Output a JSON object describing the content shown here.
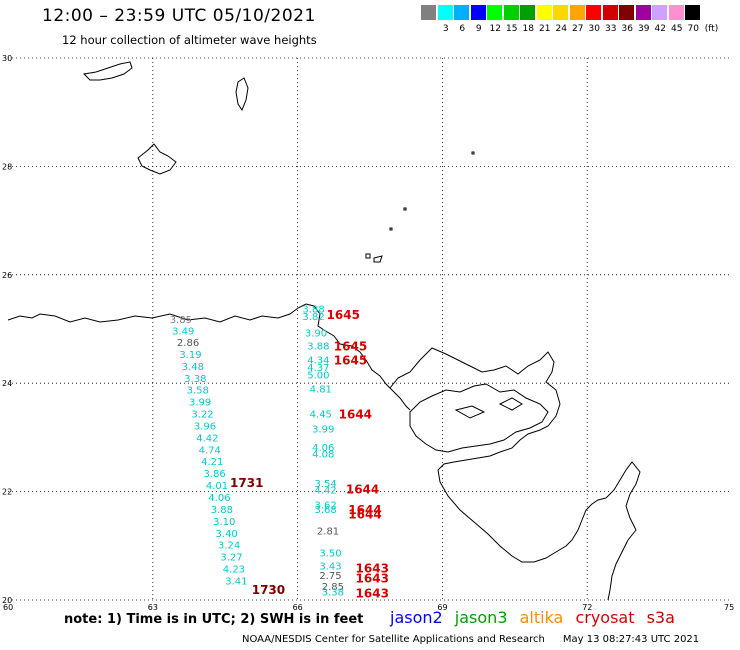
{
  "header": {
    "title": "12:00 – 23:59 UTC 05/10/2021",
    "subtitle": "12 hour collection of altimeter wave heights"
  },
  "scale": {
    "unit": "(ft)",
    "swatches": [
      {
        "color": "#808080",
        "label": ""
      },
      {
        "color": "#00ffff",
        "label": "3"
      },
      {
        "color": "#00b0ff",
        "label": "6"
      },
      {
        "color": "#0000ff",
        "label": "9"
      },
      {
        "color": "#00ff00",
        "label": "12"
      },
      {
        "color": "#00d000",
        "label": "15"
      },
      {
        "color": "#00a000",
        "label": "18"
      },
      {
        "color": "#ffff00",
        "label": "21"
      },
      {
        "color": "#ffd700",
        "label": "24"
      },
      {
        "color": "#ffa500",
        "label": "27"
      },
      {
        "color": "#ff0000",
        "label": "30"
      },
      {
        "color": "#d00000",
        "label": "33"
      },
      {
        "color": "#800000",
        "label": "36"
      },
      {
        "color": "#a000a0",
        "label": "39"
      },
      {
        "color": "#d0a0ff",
        "label": "42"
      },
      {
        "color": "#ff90d0",
        "label": "45"
      },
      {
        "color": "#000000",
        "label": "70"
      }
    ]
  },
  "map": {
    "lon_labels": [
      "60",
      "63",
      "66",
      "69",
      "72",
      "75"
    ],
    "lat_labels": [
      "30",
      "28",
      "26",
      "24",
      "22",
      "20"
    ],
    "track_west": [
      {
        "lon": 63.35,
        "lat": 25.18,
        "v": "3.85",
        "color": "#808080"
      },
      {
        "lon": 63.4,
        "lat": 24.97,
        "v": "3.49",
        "color": "#00cccc"
      },
      {
        "lon": 63.5,
        "lat": 24.76,
        "v": "2.86",
        "color": "#555555"
      },
      {
        "lon": 63.55,
        "lat": 24.54,
        "v": "3.19",
        "color": "#00cccc"
      },
      {
        "lon": 63.6,
        "lat": 24.32,
        "v": "3.48",
        "color": "#00cccc"
      },
      {
        "lon": 63.65,
        "lat": 24.1,
        "v": "3.38",
        "color": "#00cccc"
      },
      {
        "lon": 63.7,
        "lat": 23.88,
        "v": "3.58",
        "color": "#00cccc"
      },
      {
        "lon": 63.75,
        "lat": 23.66,
        "v": "3.99",
        "color": "#00cccc"
      },
      {
        "lon": 63.8,
        "lat": 23.44,
        "v": "3.22",
        "color": "#00cccc"
      },
      {
        "lon": 63.85,
        "lat": 23.22,
        "v": "3.96",
        "color": "#00cccc"
      },
      {
        "lon": 63.9,
        "lat": 23.0,
        "v": "4.42",
        "color": "#00cccc"
      },
      {
        "lon": 63.95,
        "lat": 22.78,
        "v": "4.74",
        "color": "#00cccc"
      },
      {
        "lon": 64.0,
        "lat": 22.56,
        "v": "4.21",
        "color": "#00cccc"
      },
      {
        "lon": 64.05,
        "lat": 22.34,
        "v": "3.86",
        "color": "#00cccc"
      },
      {
        "lon": 64.1,
        "lat": 22.12,
        "v": "4.01",
        "color": "#00cccc"
      },
      {
        "lon": 64.15,
        "lat": 21.9,
        "v": "4.06",
        "color": "#00cccc"
      },
      {
        "lon": 64.2,
        "lat": 21.68,
        "v": "3.88",
        "color": "#00cccc"
      },
      {
        "lon": 64.25,
        "lat": 21.46,
        "v": "3.10",
        "color": "#00cccc"
      },
      {
        "lon": 64.3,
        "lat": 21.24,
        "v": "3.40",
        "color": "#00cccc"
      },
      {
        "lon": 64.35,
        "lat": 21.02,
        "v": "3.24",
        "color": "#00cccc"
      },
      {
        "lon": 64.4,
        "lat": 20.8,
        "v": "3.27",
        "color": "#00cccc"
      },
      {
        "lon": 64.45,
        "lat": 20.58,
        "v": "4.23",
        "color": "#00cccc"
      },
      {
        "lon": 64.5,
        "lat": 20.36,
        "v": "3.41",
        "color": "#00cccc"
      }
    ],
    "track_east": [
      {
        "lon": 66.1,
        "lat": 25.38,
        "v": "3.88",
        "color": "#00cccc"
      },
      {
        "lon": 66.1,
        "lat": 25.24,
        "v": "3.82",
        "color": "#00cccc"
      },
      {
        "lon": 66.15,
        "lat": 24.94,
        "v": "3.90",
        "color": "#00cccc"
      },
      {
        "lon": 66.2,
        "lat": 24.7,
        "v": "3.88",
        "color": "#00cccc"
      },
      {
        "lon": 66.2,
        "lat": 24.44,
        "v": "4.34",
        "color": "#00cccc"
      },
      {
        "lon": 66.2,
        "lat": 24.3,
        "v": "4.37",
        "color": "#00cccc"
      },
      {
        "lon": 66.2,
        "lat": 24.16,
        "v": "5.00",
        "color": "#00cccc"
      },
      {
        "lon": 66.25,
        "lat": 23.9,
        "v": "4.81",
        "color": "#00cccc"
      },
      {
        "lon": 66.25,
        "lat": 23.44,
        "v": "4.45",
        "color": "#00cccc"
      },
      {
        "lon": 66.3,
        "lat": 23.16,
        "v": "3.99",
        "color": "#00cccc"
      },
      {
        "lon": 66.3,
        "lat": 22.82,
        "v": "4.06",
        "color": "#00cccc"
      },
      {
        "lon": 66.3,
        "lat": 22.7,
        "v": "4.08",
        "color": "#00cccc"
      },
      {
        "lon": 66.35,
        "lat": 22.16,
        "v": "3.54",
        "color": "#00cccc"
      },
      {
        "lon": 66.35,
        "lat": 22.04,
        "v": "4.42",
        "color": "#00cccc"
      },
      {
        "lon": 66.35,
        "lat": 21.76,
        "v": "3.62",
        "color": "#00cccc"
      },
      {
        "lon": 66.35,
        "lat": 21.68,
        "v": "3.68",
        "color": "#00cccc"
      },
      {
        "lon": 66.4,
        "lat": 21.28,
        "v": "2.81",
        "color": "#555555"
      },
      {
        "lon": 66.45,
        "lat": 20.88,
        "v": "3.50",
        "color": "#00cccc"
      },
      {
        "lon": 66.45,
        "lat": 20.64,
        "v": "3.43",
        "color": "#00cccc"
      },
      {
        "lon": 66.45,
        "lat": 20.46,
        "v": "2.75",
        "color": "#555555"
      },
      {
        "lon": 66.5,
        "lat": 20.26,
        "v": "2.85",
        "color": "#555555"
      },
      {
        "lon": 66.5,
        "lat": 20.16,
        "v": "3.38",
        "color": "#00cccc"
      }
    ],
    "time_labels": [
      {
        "lon": 66.6,
        "lat": 25.26,
        "t": "1645",
        "color": "#dd0000"
      },
      {
        "lon": 66.75,
        "lat": 24.68,
        "t": "1645",
        "color": "#dd0000"
      },
      {
        "lon": 66.75,
        "lat": 24.42,
        "t": "1645",
        "color": "#dd0000"
      },
      {
        "lon": 66.85,
        "lat": 23.42,
        "t": "1644",
        "color": "#dd0000"
      },
      {
        "lon": 64.6,
        "lat": 22.16,
        "t": "1731",
        "color": "#800000"
      },
      {
        "lon": 67.0,
        "lat": 22.04,
        "t": "1644",
        "color": "#dd0000"
      },
      {
        "lon": 67.05,
        "lat": 21.66,
        "t": "1644",
        "color": "#dd0000"
      },
      {
        "lon": 67.05,
        "lat": 21.58,
        "t": "1644",
        "color": "#dd0000"
      },
      {
        "lon": 67.2,
        "lat": 20.58,
        "t": "1643",
        "color": "#dd0000"
      },
      {
        "lon": 67.2,
        "lat": 20.4,
        "t": "1643",
        "color": "#dd0000"
      },
      {
        "lon": 67.2,
        "lat": 20.12,
        "t": "1643",
        "color": "#dd0000"
      },
      {
        "lon": 65.05,
        "lat": 20.18,
        "t": "1730",
        "color": "#800000"
      }
    ]
  },
  "note": "note: 1) Time is in UTC; 2) SWH is in feet",
  "legend": [
    {
      "name": "jason2",
      "color": "#0000ff"
    },
    {
      "name": "jason3",
      "color": "#00a000"
    },
    {
      "name": "altika",
      "color": "#ff8c00"
    },
    {
      "name": "cryosat",
      "color": "#dd0000"
    },
    {
      "name": "s3a",
      "color": "#cc0000"
    }
  ],
  "footer": {
    "credit": "NOAA/NESDIS Center for Satellite Applications and Research",
    "timestamp": "May 13 08:27:43 UTC 2021"
  }
}
